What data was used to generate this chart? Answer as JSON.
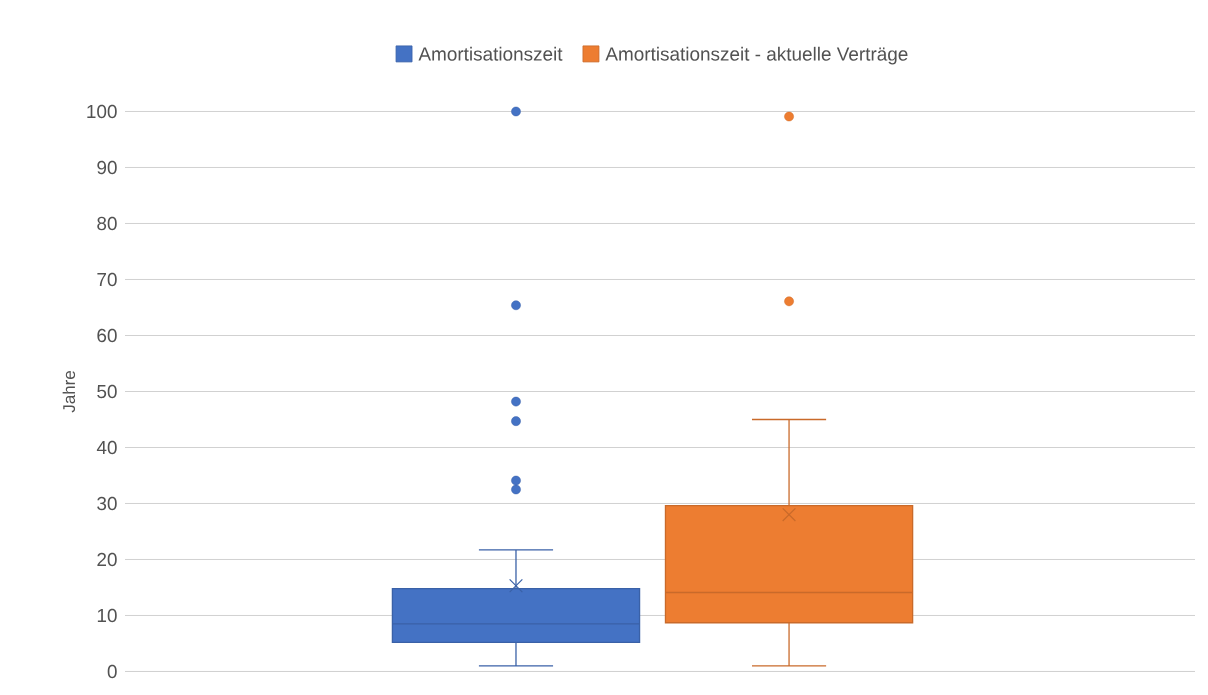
{
  "chart_data": {
    "type": "box",
    "ylabel": "Jahre",
    "categories": [
      null
    ],
    "ylim": [
      0,
      100
    ],
    "yticks": [
      0,
      10,
      20,
      30,
      40,
      50,
      60,
      70,
      80,
      90,
      100
    ],
    "grid": "y",
    "legend": "top",
    "series": [
      {
        "name": "Amortisationszeit",
        "color": "#4472c4",
        "boxes": [
          {
            "low": 1,
            "q1": 5.2,
            "median": 8.5,
            "q3": 14.8,
            "high": 21.7,
            "mean": 15.3,
            "outliers": [
              32.5,
              34.1,
              44.7,
              48.2,
              65.4,
              100
            ]
          }
        ]
      },
      {
        "name": "Amortisationszeit - aktuelle Verträge",
        "color": "#ed7d31",
        "boxes": [
          {
            "low": 1,
            "q1": 8.7,
            "median": 14.1,
            "q3": 29.6,
            "high": 45,
            "mean": 28,
            "outliers": [
              66.1,
              99.1
            ]
          }
        ]
      }
    ]
  }
}
